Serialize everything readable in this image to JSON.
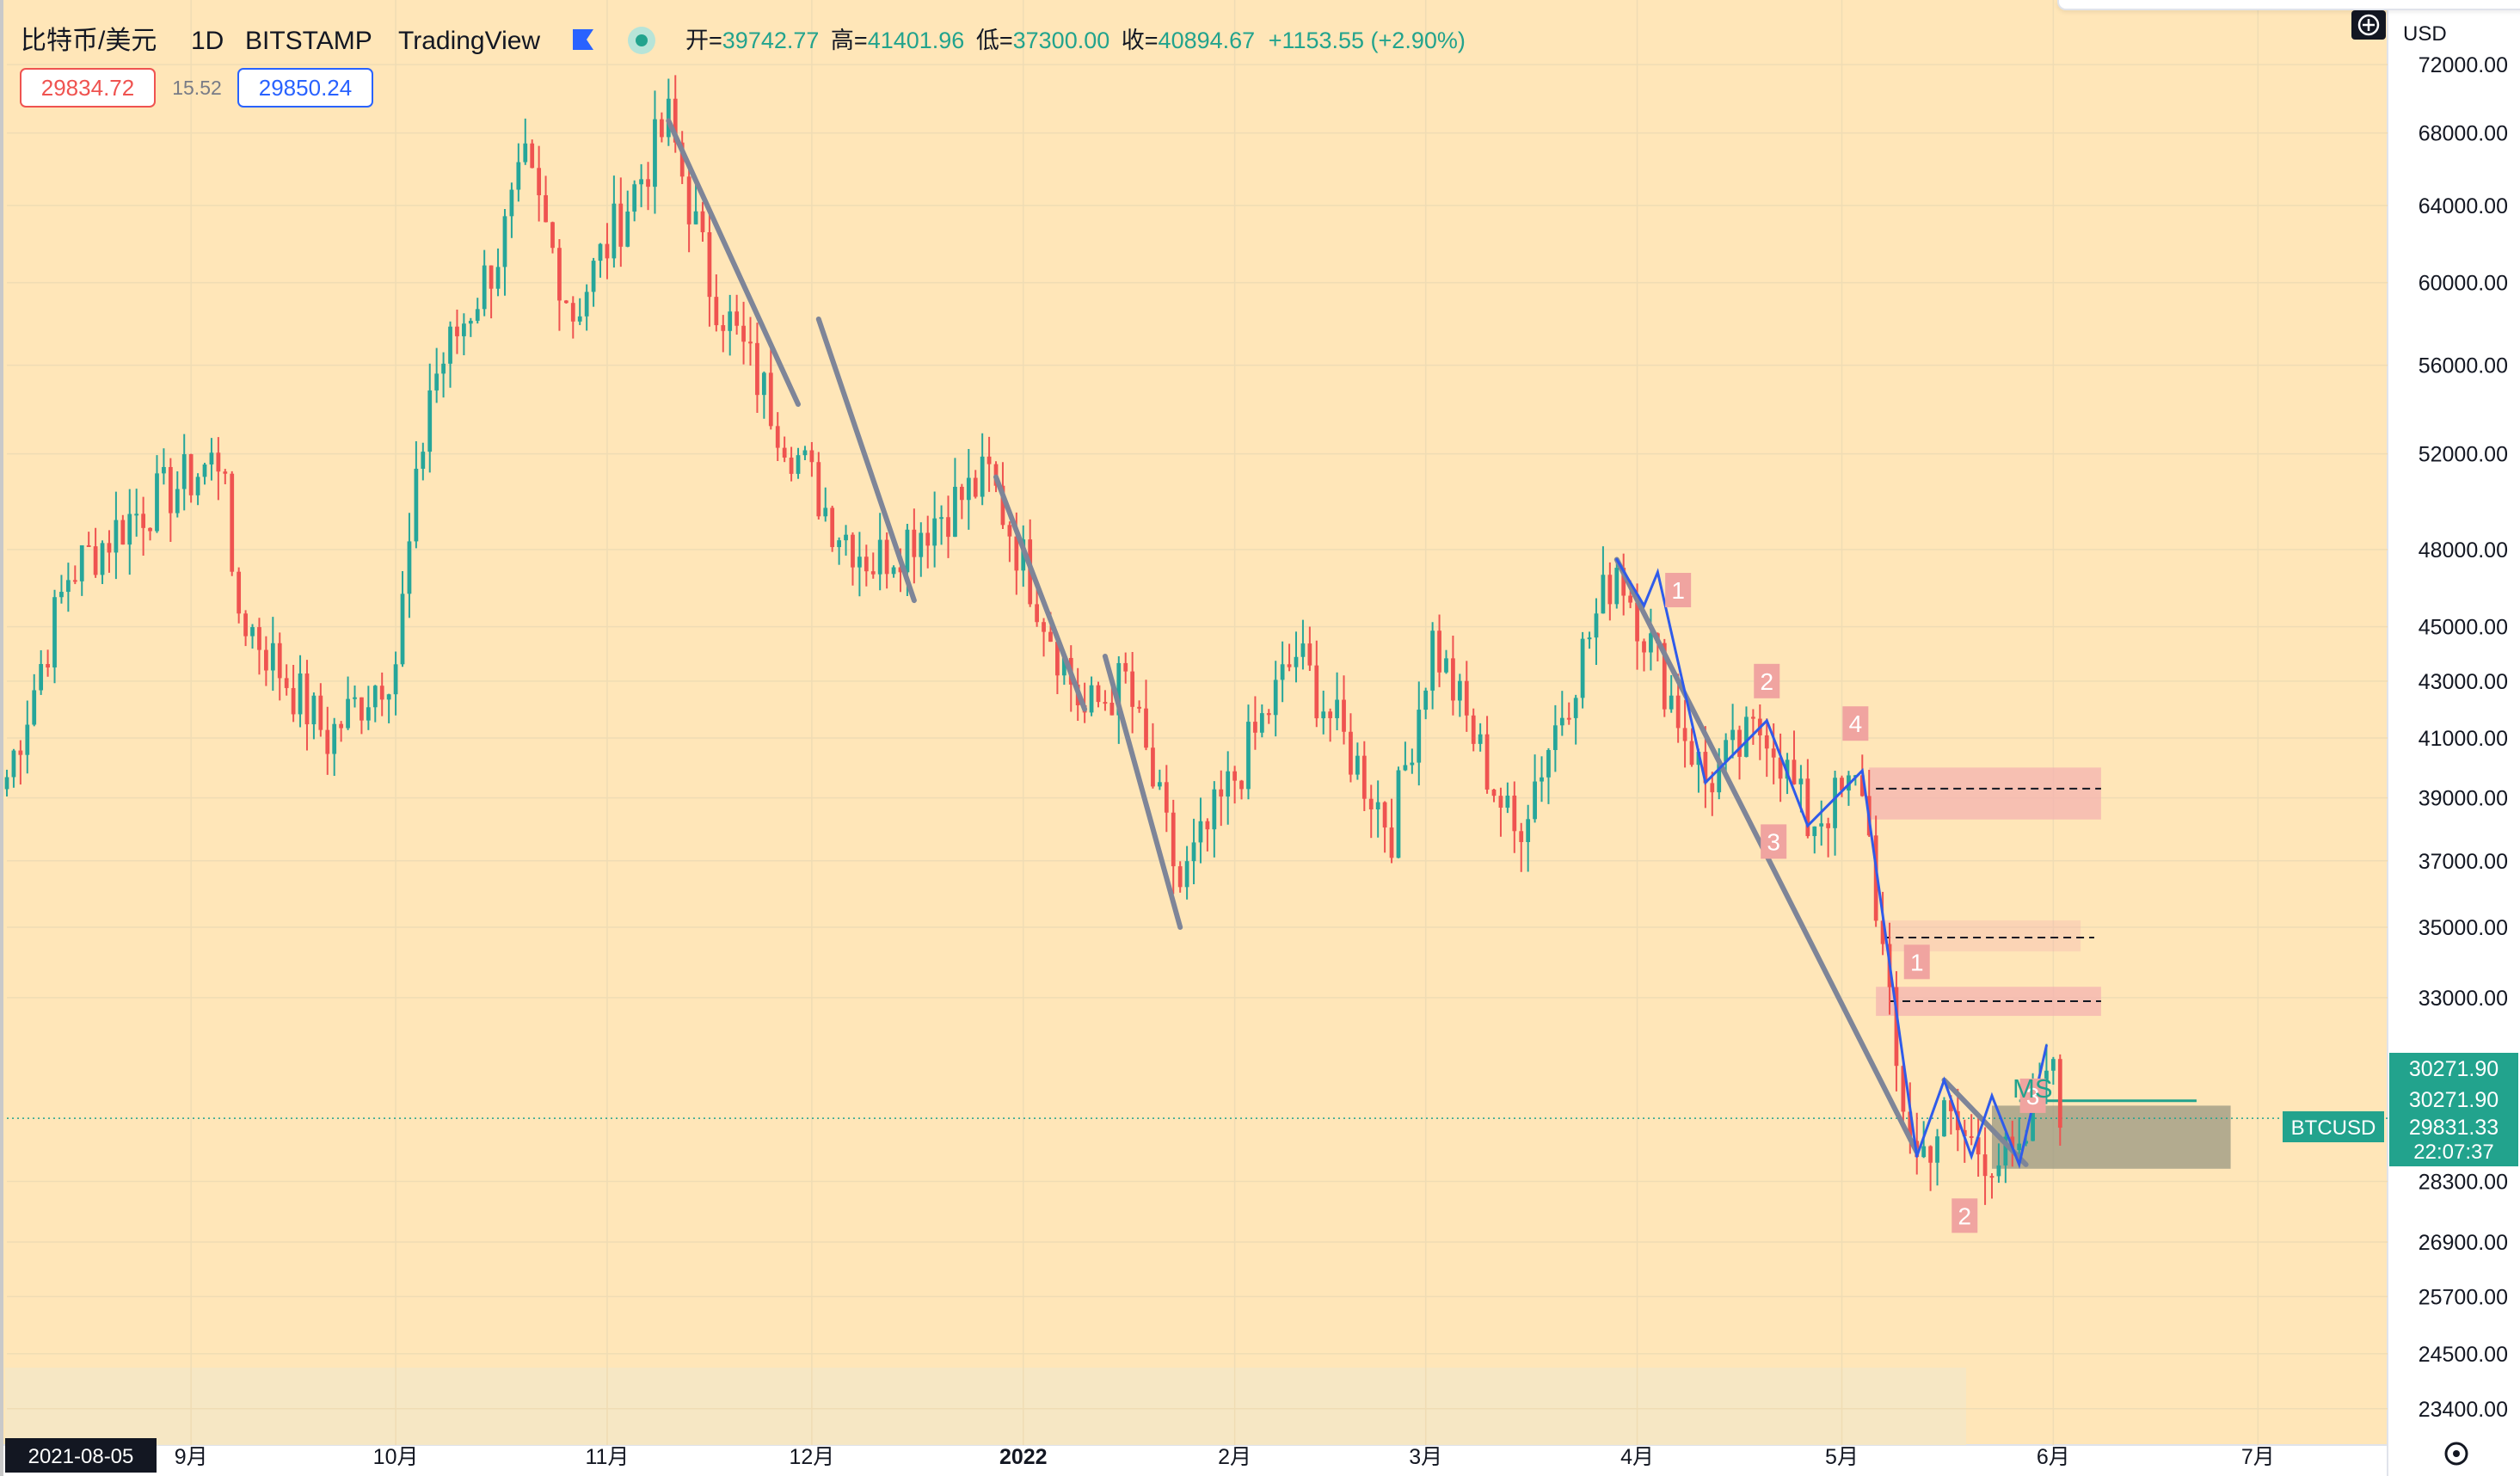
{
  "header": {
    "symbol": "比特币/美元",
    "interval": "1D",
    "exchange": "BITSTAMP",
    "brand": "TradingView",
    "ohlc": {
      "open_label": "开=",
      "open": "39742.77",
      "high_label": "高=",
      "high": "41401.96",
      "low_label": "低=",
      "low": "37300.00",
      "close_label": "收=",
      "close": "40894.67",
      "change": "+1153.55 (+2.90%)"
    },
    "sell_price": "29834.72",
    "spread": "15.52",
    "buy_price": "29850.24"
  },
  "price_axis": {
    "currency": "USD",
    "current_price_label": "BTCUSD",
    "current_price": "29831.33",
    "countdown": "22:07:37",
    "marker_price_1": "30271.90",
    "marker_price_2": "30271.90"
  },
  "time_axis": {
    "start_date_label": "2021-08-05"
  },
  "annotations": {
    "ms_label": "MS",
    "wave_labels": [
      "1",
      "2",
      "3",
      "4",
      "1",
      "2",
      "3"
    ]
  },
  "colors": {
    "background": "#ffe6b8",
    "up_candle": "#26a69a",
    "down_candle": "#ef5350",
    "trend_line": "#7e8598",
    "wave_line": "#2f5bea",
    "zone_red": "#f4b3b0",
    "zone_box": "#8a8c7a",
    "accent_teal": "#22a38d"
  },
  "chart_data": {
    "type": "candlestick",
    "title": "比特币/美元 · 1D · BITSTAMP",
    "y_scale": "log",
    "ylim": [
      22700,
      76000
    ],
    "xlim": [
      "2021-08-05",
      "2022-07-20"
    ],
    "y_tick_labels": [
      "72000.00",
      "68000.00",
      "64000.00",
      "60000.00",
      "56000.00",
      "52000.00",
      "48000.00",
      "45000.00",
      "43000.00",
      "41000.00",
      "39000.00",
      "37000.00",
      "35000.00",
      "33000.00",
      "28300.00",
      "26900.00",
      "25700.00",
      "24500.00",
      "23400.00"
    ],
    "x_tick_labels": [
      "9月",
      "10月",
      "11月",
      "12月",
      "2022",
      "2月",
      "3月",
      "4月",
      "5月",
      "6月",
      "7月"
    ],
    "key_points": [
      {
        "x": "2021-08-05",
        "y": 39700
      },
      {
        "x": "2021-08-14",
        "y": 47000
      },
      {
        "x": "2021-08-23",
        "y": 49300
      },
      {
        "x": "2021-09-06",
        "y": 52000
      },
      {
        "x": "2021-09-07",
        "y": 46000
      },
      {
        "x": "2021-09-21",
        "y": 41000
      },
      {
        "x": "2021-10-01",
        "y": 43800
      },
      {
        "x": "2021-10-06",
        "y": 55000
      },
      {
        "x": "2021-10-16",
        "y": 61500
      },
      {
        "x": "2021-10-20",
        "y": 66000
      },
      {
        "x": "2021-10-27",
        "y": 58500
      },
      {
        "x": "2021-11-10",
        "y": 68700
      },
      {
        "x": "2021-11-16",
        "y": 60000
      },
      {
        "x": "2021-11-26",
        "y": 53500
      },
      {
        "x": "2021-12-04",
        "y": 49200
      },
      {
        "x": "2021-12-10",
        "y": 47500
      },
      {
        "x": "2021-12-27",
        "y": 51000
      },
      {
        "x": "2022-01-10",
        "y": 41800
      },
      {
        "x": "2022-01-16",
        "y": 43000
      },
      {
        "x": "2022-01-24",
        "y": 36200
      },
      {
        "x": "2022-02-10",
        "y": 44000
      },
      {
        "x": "2022-02-24",
        "y": 38000
      },
      {
        "x": "2022-03-02",
        "y": 44500
      },
      {
        "x": "2022-03-14",
        "y": 37800
      },
      {
        "x": "2022-03-29",
        "y": 47500
      },
      {
        "x": "2022-04-11",
        "y": 39500
      },
      {
        "x": "2022-04-20",
        "y": 41500
      },
      {
        "x": "2022-04-26",
        "y": 38200
      },
      {
        "x": "2022-05-04",
        "y": 39500
      },
      {
        "x": "2022-05-09",
        "y": 31000
      },
      {
        "x": "2022-05-12",
        "y": 28800
      },
      {
        "x": "2022-05-16",
        "y": 29800
      },
      {
        "x": "2022-05-20",
        "y": 29200
      },
      {
        "x": "2022-05-27",
        "y": 28600
      },
      {
        "x": "2022-05-31",
        "y": 31700
      },
      {
        "x": "2022-06-02",
        "y": 29831
      }
    ]
  }
}
